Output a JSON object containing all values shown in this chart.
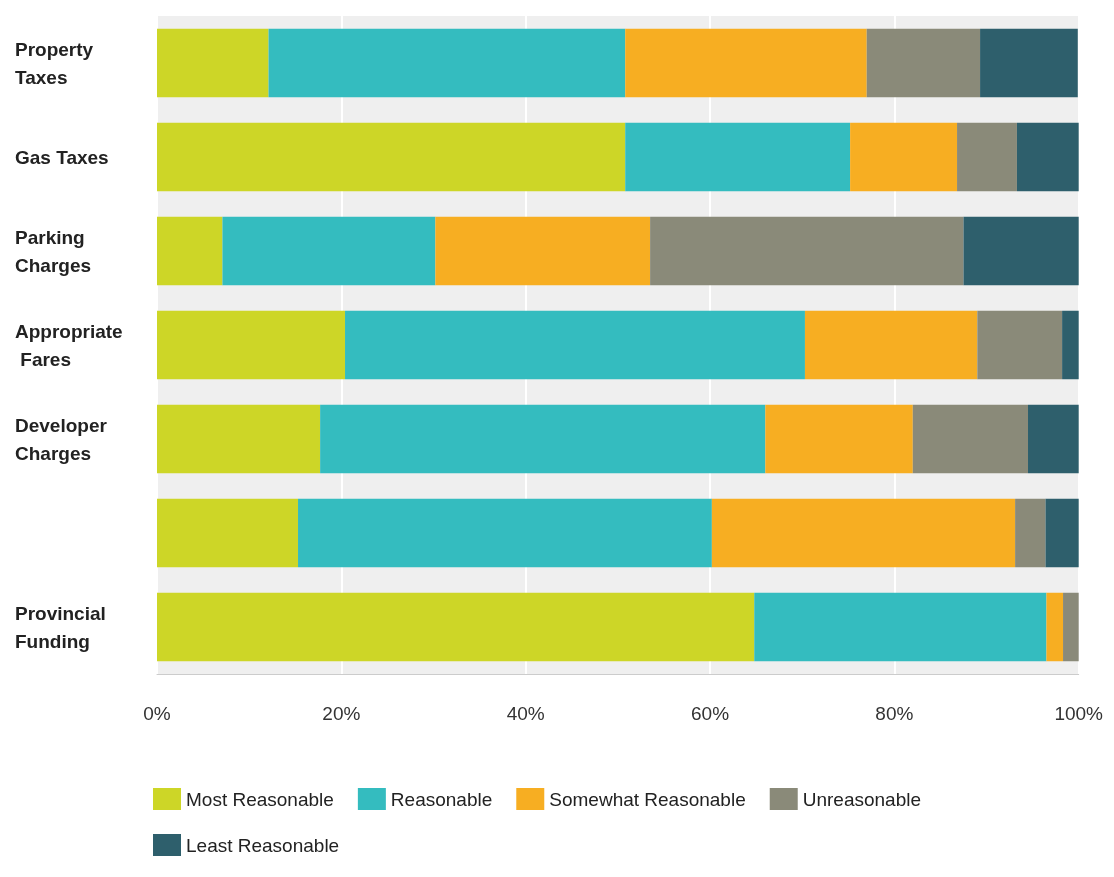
{
  "chart_data": {
    "type": "bar",
    "orientation": "horizontal",
    "stacked": true,
    "categories": [
      "Property Taxes",
      "Gas Taxes",
      "Parking Charges",
      "Appropriate Fares",
      "Developer Charges",
      null,
      "Provincial Funding"
    ],
    "series": [
      {
        "name": "Most Reasonable",
        "color": "#cdd627",
        "values": [
          12.1,
          50.8,
          7.1,
          20.4,
          17.7,
          15.3,
          64.8
        ]
      },
      {
        "name": "Reasonable",
        "color": "#34bcbf",
        "values": [
          38.7,
          24.4,
          23.1,
          49.9,
          48.3,
          44.9,
          31.7
        ]
      },
      {
        "name": "Somewhat Reasonable",
        "color": "#f7ae22",
        "values": [
          26.2,
          11.6,
          23.3,
          18.7,
          16.0,
          32.9,
          1.8
        ]
      },
      {
        "name": "Unreasonable",
        "color": "#8a8a79",
        "values": [
          12.3,
          6.5,
          34.0,
          9.2,
          12.5,
          3.3,
          1.7
        ]
      },
      {
        "name": "Least Reasonable",
        "color": "#2e5f6c",
        "values": [
          10.6,
          6.7,
          12.5,
          1.8,
          5.5,
          3.6,
          0
        ]
      }
    ],
    "xlim": [
      0,
      100
    ],
    "xticks": [
      {
        "value": 0,
        "label": "0%"
      },
      {
        "value": 20,
        "label": "20%"
      },
      {
        "value": 40,
        "label": "40%"
      },
      {
        "value": 60,
        "label": "60%"
      },
      {
        "value": 80,
        "label": "80%"
      },
      {
        "value": 100,
        "label": "100%"
      }
    ],
    "grid": "x",
    "legend": "bottom"
  }
}
